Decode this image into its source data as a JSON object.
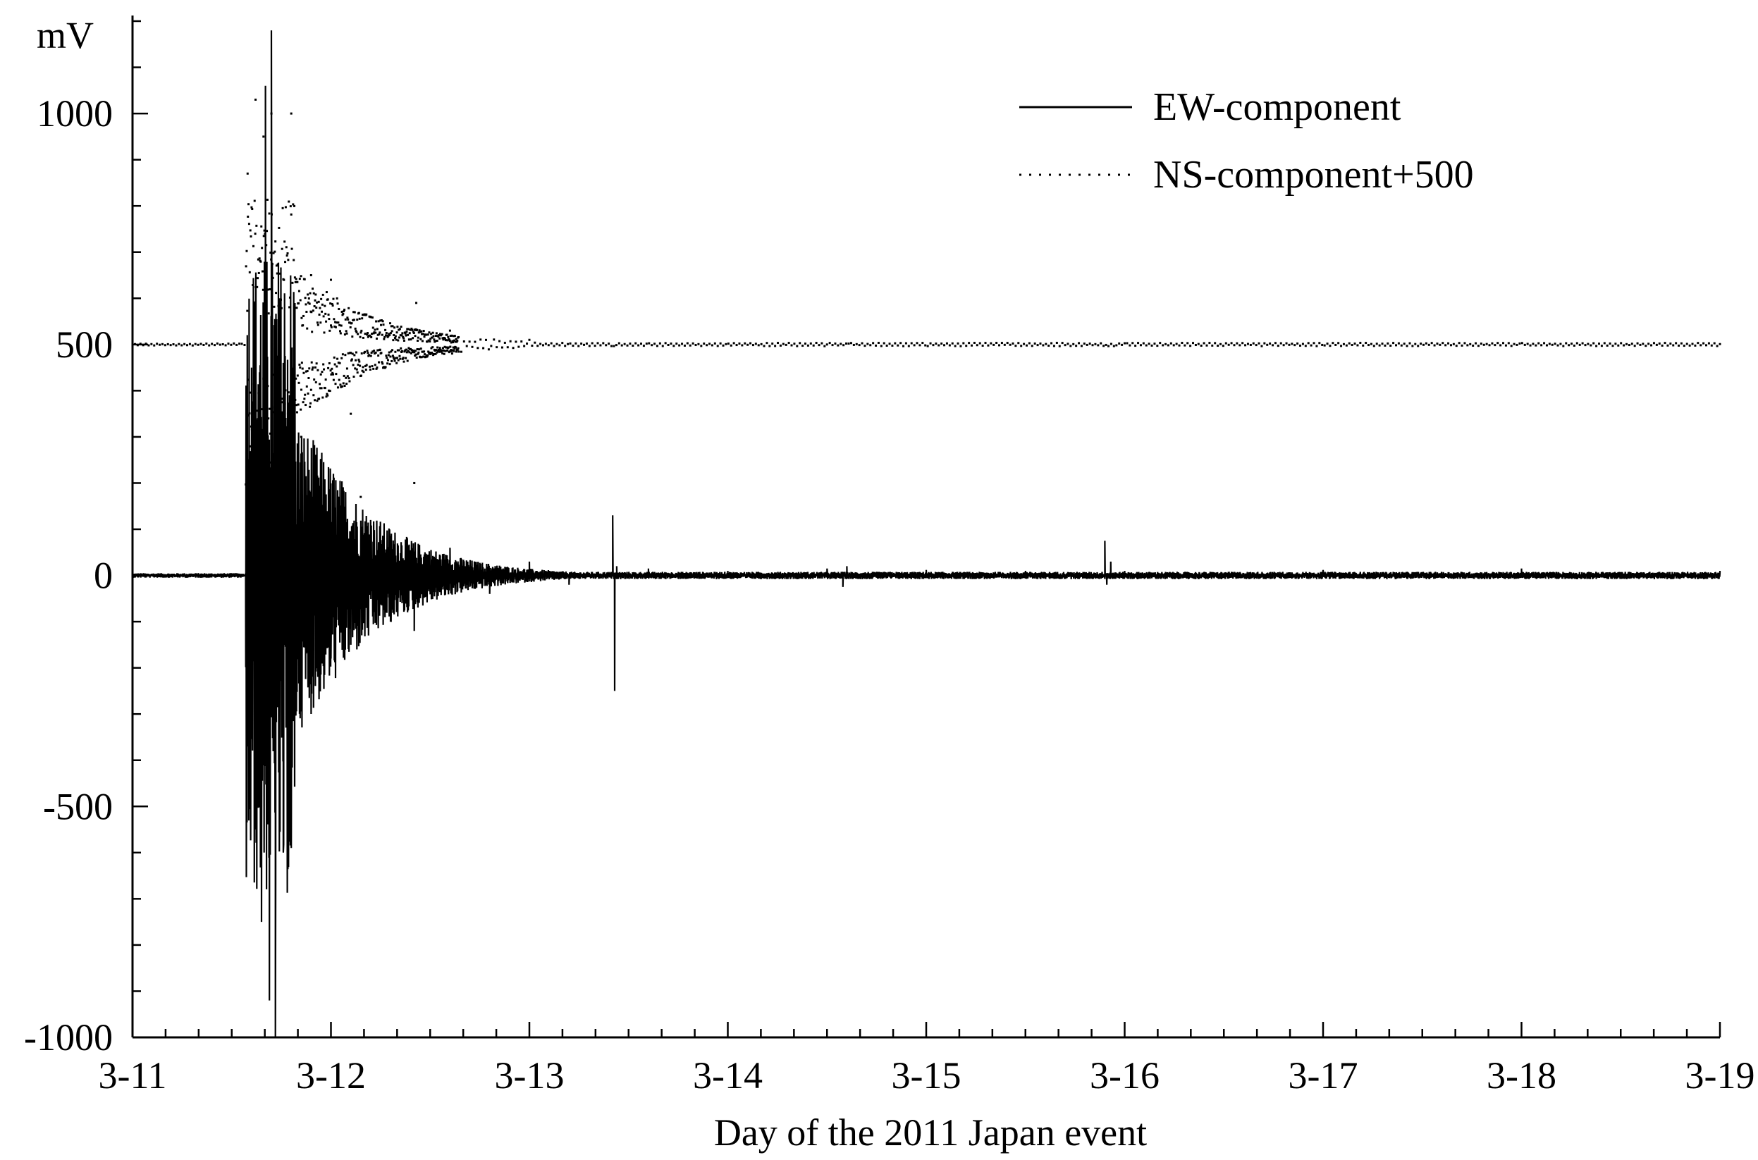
{
  "chart_data": {
    "type": "line",
    "title": "",
    "xlabel": "Day of the 2011 Japan event",
    "ylabel": "mV",
    "xlim": [
      "3-11",
      "3-19"
    ],
    "ylim": [
      -1000,
      1200
    ],
    "x_ticks": [
      "3-11",
      "3-12",
      "3-13",
      "3-14",
      "3-15",
      "3-16",
      "3-17",
      "3-18",
      "3-19"
    ],
    "y_ticks": [
      "-1000",
      "-500",
      "0",
      "500",
      "1000"
    ],
    "grid": false,
    "legend_position": "top-right",
    "series": [
      {
        "name": "EW-component",
        "style": "solid",
        "baseline": 0,
        "x_days": [
          0,
          0.57,
          0.58,
          0.6,
          0.62,
          0.64,
          0.65,
          0.67,
          0.69,
          0.7,
          0.72,
          0.74,
          0.76,
          0.8,
          0.85,
          0.9,
          0.95,
          1.0,
          1.05,
          1.1,
          1.2,
          1.3,
          1.42,
          1.6,
          1.8,
          2.0,
          2.2,
          2.42,
          2.43,
          2.44,
          2.6,
          3.0,
          3.5,
          3.58,
          3.6,
          4.0,
          4.5,
          4.9,
          4.91,
          4.93,
          5.0,
          6.0,
          7.0,
          8.0
        ],
        "values": [
          0,
          0,
          -330,
          450,
          -550,
          380,
          -750,
          1060,
          -920,
          1180,
          -1000,
          600,
          -600,
          -590,
          250,
          -240,
          200,
          -180,
          150,
          -150,
          120,
          -100,
          -120,
          60,
          -40,
          30,
          -20,
          130,
          -250,
          20,
          15,
          10,
          15,
          -25,
          20,
          12,
          10,
          75,
          -20,
          30,
          10,
          12,
          15,
          10
        ]
      },
      {
        "name": "NS-component+500",
        "style": "dotted",
        "baseline": 500,
        "x_days": [
          0,
          0.55,
          0.58,
          0.6,
          0.62,
          0.64,
          0.66,
          0.68,
          0.7,
          0.74,
          0.8,
          0.85,
          0.9,
          0.95,
          1.0,
          1.1,
          1.15,
          1.2,
          1.42,
          1.43,
          1.6,
          1.8,
          2.0,
          2.2,
          2.42,
          2.43,
          2.6,
          3.0,
          3.5,
          3.6,
          3.61,
          4.0,
          4.9,
          4.91,
          4.95,
          5.0,
          6.0,
          7.0,
          8.0
        ],
        "values": [
          500,
          500,
          870,
          200,
          1030,
          150,
          950,
          300,
          1000,
          200,
          1000,
          300,
          650,
          250,
          640,
          350,
          170,
          560,
          200,
          590,
          530,
          520,
          510,
          520,
          320,
          530,
          510,
          505,
          500,
          370,
          520,
          510,
          460,
          510,
          505,
          500,
          505,
          500,
          500
        ]
      }
    ]
  }
}
